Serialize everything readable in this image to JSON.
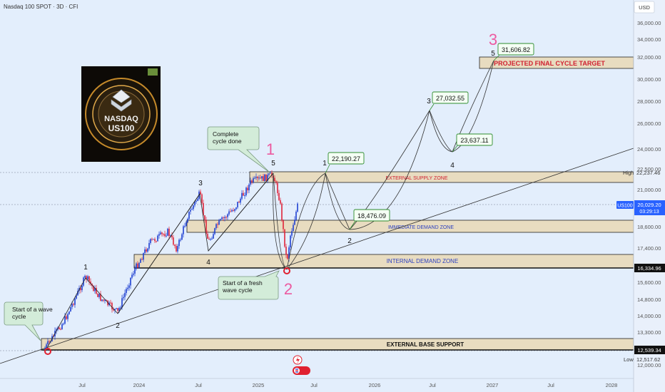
{
  "header": {
    "symbol_title": "Nasdaq 100 SPOT · 3D · CFI"
  },
  "price_axis": {
    "currency": "USD",
    "ticks": [
      "36,000.00",
      "34,000.00",
      "32,000.00",
      "30,000.00",
      "28,000.00",
      "26,000.00",
      "24,000.00",
      "22,500.00",
      "21,000.00",
      "19,800.00",
      "18,600.00",
      "17,400.00",
      "16,400.00",
      "15,600.00",
      "14,800.00",
      "14,000.00",
      "13,300.00",
      "12,000.00"
    ],
    "high_label": "High",
    "high_value": "22,237.46",
    "ticker_label": "US100",
    "last_price": "20,029.20",
    "countdown": "03:29:13",
    "demand_level": "16,334.96",
    "base_level": "12,539.34",
    "low_label": "Low",
    "low_value": "12,517.62"
  },
  "time_axis": {
    "ticks": [
      "Jul",
      "2024",
      "Jul",
      "2025",
      "Jul",
      "2026",
      "Jul",
      "2027",
      "Jul",
      "2028"
    ]
  },
  "zones": {
    "external_supply": "EXTERNAL SUPPLY ZONE",
    "immediate_demand": "IMMEDIATE DEMAND ZONE",
    "internal_demand": "INTERNAL DEMAND ZONE",
    "external_base": "EXTERNAL BASE SUPPORT",
    "target": "PROJECTED FINAL CYCLE TARGET"
  },
  "annotations": {
    "start_wave": [
      "Start of a wave",
      "cycle"
    ],
    "complete_cycle": [
      "Complete",
      "cycle done"
    ],
    "fresh_wave": [
      "Start of a fresh",
      "wave cycle"
    ]
  },
  "wave_labels": {
    "w1_past": "1",
    "w2_past": "2",
    "w3_past": "3",
    "w4_past": "4",
    "w5_past": "5",
    "big_1": "1",
    "big_2": "2",
    "big_3": "3",
    "p1": "1",
    "p2": "2",
    "p3": "3",
    "p4": "4",
    "p5": "5"
  },
  "price_callouts": {
    "p1": "22,190.27",
    "p2": "18,476.09",
    "p3": "27,032.55",
    "p4": "23,637.11",
    "p5": "31,606.82"
  },
  "logo": {
    "line1": "NASDAQ",
    "line2": "US100"
  },
  "colors": {
    "background": "#e3eefc",
    "zone_fill": "#e8dcc0",
    "bull_candle": "#1e3fd1",
    "bear_candle": "#e0253a",
    "wave_pink": "#ec5aa0",
    "circle_red": "#e02030",
    "callout_border": "#2e8b2e",
    "ticker_blue": "#2962ff"
  },
  "chart_data": {
    "type": "candlestick",
    "title": "Nasdaq 100 SPOT · 3D · CFI",
    "ylabel": "USD",
    "ylim": [
      12000,
      37000
    ],
    "x_ticks": [
      "Jul 2023",
      "2024",
      "Jul 2024",
      "2025",
      "Jul 2025",
      "2026",
      "Jul 2026",
      "2027",
      "Jul 2027",
      "2028"
    ],
    "price_path": [
      {
        "t": "2023-04",
        "price": 12540
      },
      {
        "t": "2023-07",
        "price": 15600
      },
      {
        "t": "2023-10",
        "price": 14100
      },
      {
        "t": "2024-07",
        "price": 20700
      },
      {
        "t": "2024-08",
        "price": 17400
      },
      {
        "t": "2024-12",
        "price": 22237
      },
      {
        "t": "2025-04",
        "price": 16335
      },
      {
        "t": "2025-05",
        "price": 20029
      }
    ],
    "projected_path": [
      {
        "t": "2025-09",
        "price": 22190.27
      },
      {
        "t": "2025-12",
        "price": 18476.09
      },
      {
        "t": "2026-07",
        "price": 27032.55
      },
      {
        "t": "2026-09",
        "price": 23637.11
      },
      {
        "t": "2027-01",
        "price": 31606.82
      }
    ],
    "zones": [
      {
        "name": "EXTERNAL SUPPLY ZONE",
        "from": 21600,
        "to": 22600
      },
      {
        "name": "IMMEDIATE DEMAND ZONE",
        "from": 18250,
        "to": 19150
      },
      {
        "name": "INTERNAL DEMAND ZONE",
        "from": 16350,
        "to": 17100
      },
      {
        "name": "EXTERNAL BASE SUPPORT",
        "from": 12550,
        "to": 13250
      },
      {
        "name": "PROJECTED FINAL CYCLE TARGET",
        "from": 30700,
        "to": 31900
      }
    ],
    "levels": {
      "high": 22237.46,
      "last": 20029.2,
      "demand": 16334.96,
      "base": 12539.34,
      "low": 12517.62
    }
  }
}
